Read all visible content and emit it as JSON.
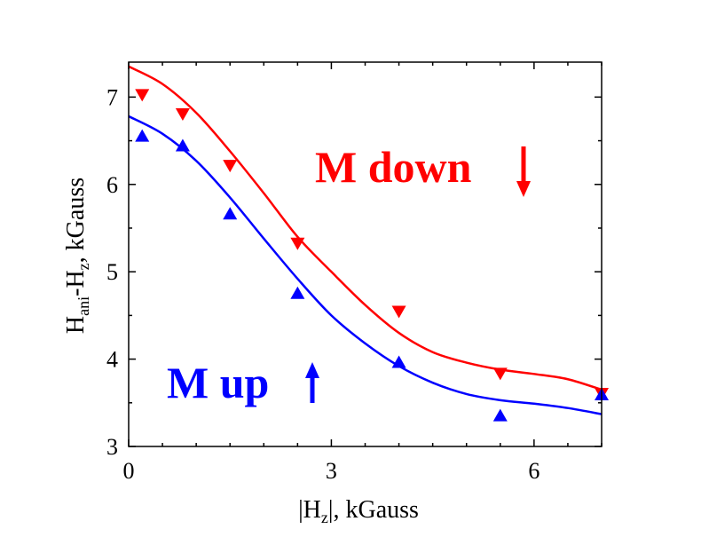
{
  "chart_data": {
    "type": "scatter",
    "xlabel": {
      "pre": "|H",
      "sub": "z",
      "post": "|, kGauss"
    },
    "ylabel": {
      "p1": "H",
      "s1": "ani",
      "p2": "-H",
      "s2": "z",
      "p3": ", kGauss"
    },
    "xlim": [
      0,
      7
    ],
    "ylim": [
      3,
      7.4
    ],
    "xticks": [
      0,
      3,
      6
    ],
    "yticks": [
      3,
      4,
      5,
      6,
      7
    ],
    "grid": false,
    "series": [
      {
        "name": "M down",
        "color": "#ff0000",
        "marker": "triangle-down",
        "points": [
          [
            0.2,
            7.02
          ],
          [
            0.8,
            6.8
          ],
          [
            1.5,
            6.21
          ],
          [
            2.5,
            5.32
          ],
          [
            4.0,
            4.54
          ],
          [
            5.5,
            3.83
          ],
          [
            7.0,
            3.6
          ]
        ],
        "fit": [
          [
            0,
            7.35
          ],
          [
            0.5,
            7.15
          ],
          [
            1.0,
            6.82
          ],
          [
            1.5,
            6.38
          ],
          [
            2.0,
            5.9
          ],
          [
            2.5,
            5.4
          ],
          [
            3.0,
            5.0
          ],
          [
            3.5,
            4.62
          ],
          [
            4.0,
            4.3
          ],
          [
            4.5,
            4.08
          ],
          [
            5.0,
            3.96
          ],
          [
            5.5,
            3.88
          ],
          [
            6.0,
            3.83
          ],
          [
            6.5,
            3.77
          ],
          [
            7.0,
            3.65
          ]
        ]
      },
      {
        "name": "M up",
        "color": "#0000ff",
        "marker": "triangle-up",
        "points": [
          [
            0.2,
            6.56
          ],
          [
            0.8,
            6.45
          ],
          [
            1.5,
            5.67
          ],
          [
            2.5,
            4.76
          ],
          [
            4.0,
            3.97
          ],
          [
            5.5,
            3.36
          ],
          [
            7.0,
            3.6
          ]
        ],
        "fit": [
          [
            0,
            6.78
          ],
          [
            0.5,
            6.58
          ],
          [
            1.0,
            6.27
          ],
          [
            1.5,
            5.85
          ],
          [
            2.0,
            5.38
          ],
          [
            2.5,
            4.92
          ],
          [
            3.0,
            4.5
          ],
          [
            3.5,
            4.18
          ],
          [
            4.0,
            3.92
          ],
          [
            4.5,
            3.73
          ],
          [
            5.0,
            3.6
          ],
          [
            5.5,
            3.53
          ],
          [
            6.0,
            3.49
          ],
          [
            6.5,
            3.44
          ],
          [
            7.0,
            3.37
          ]
        ]
      }
    ],
    "annotations": [
      {
        "text": "M down",
        "color": "#ff0000",
        "arrow": "down"
      },
      {
        "text": "M up",
        "color": "#0000ff",
        "arrow": "up"
      }
    ]
  }
}
